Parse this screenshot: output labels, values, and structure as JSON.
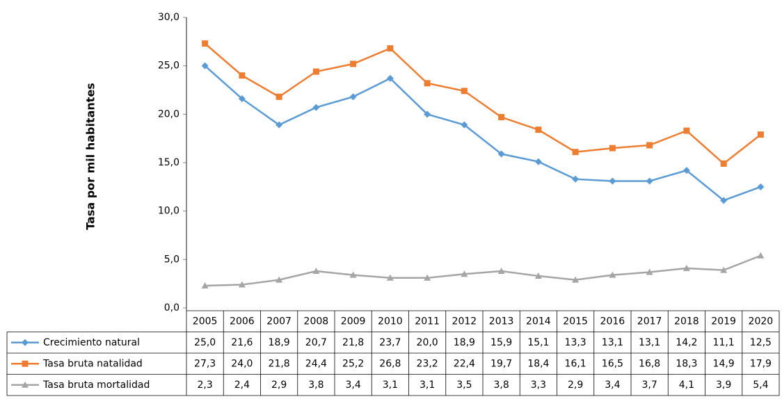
{
  "chart_data": {
    "type": "line",
    "y_label": "Tasa por mil habitantes",
    "categories": [
      "2005",
      "2006",
      "2007",
      "2008",
      "2009",
      "2010",
      "2011",
      "2012",
      "2013",
      "2014",
      "2015",
      "2016",
      "2017",
      "2018",
      "2019",
      "2020"
    ],
    "ylim": [
      0,
      30
    ],
    "yticks": [
      {
        "value": 0,
        "label": "0,0"
      },
      {
        "value": 5,
        "label": "5,0"
      },
      {
        "value": 10,
        "label": "10,0"
      },
      {
        "value": 15,
        "label": "15,0"
      },
      {
        "value": 20,
        "label": "20,0"
      },
      {
        "value": 25,
        "label": "25,0"
      },
      {
        "value": 30,
        "label": "30,0"
      }
    ],
    "series": [
      {
        "name": "Crecimiento natural",
        "color": "#5b9bd5",
        "marker": "diamond",
        "values": [
          25.0,
          21.6,
          18.9,
          20.7,
          21.8,
          23.7,
          20.0,
          18.9,
          15.9,
          15.1,
          13.3,
          13.1,
          13.1,
          14.2,
          11.1,
          12.5
        ],
        "value_labels": [
          "25,0",
          "21,6",
          "18,9",
          "20,7",
          "21,8",
          "23,7",
          "20,0",
          "18,9",
          "15,9",
          "15,1",
          "13,3",
          "13,1",
          "13,1",
          "14,2",
          "11,1",
          "12,5"
        ]
      },
      {
        "name": "Tasa bruta natalidad",
        "color": "#ed7d31",
        "marker": "square",
        "values": [
          27.3,
          24.0,
          21.8,
          24.4,
          25.2,
          26.8,
          23.2,
          22.4,
          19.7,
          18.4,
          16.1,
          16.5,
          16.8,
          18.3,
          14.9,
          17.9
        ],
        "value_labels": [
          "27,3",
          "24,0",
          "21,8",
          "24,4",
          "25,2",
          "26,8",
          "23,2",
          "22,4",
          "19,7",
          "18,4",
          "16,1",
          "16,5",
          "16,8",
          "18,3",
          "14,9",
          "17,9"
        ]
      },
      {
        "name": "Tasa bruta mortalidad",
        "color": "#a5a5a5",
        "marker": "triangle",
        "values": [
          2.3,
          2.4,
          2.9,
          3.8,
          3.4,
          3.1,
          3.1,
          3.5,
          3.8,
          3.3,
          2.9,
          3.4,
          3.7,
          4.1,
          3.9,
          5.4
        ],
        "value_labels": [
          "2,3",
          "2,4",
          "2,9",
          "3,8",
          "3,4",
          "3,1",
          "3,1",
          "3,5",
          "3,8",
          "3,3",
          "2,9",
          "3,4",
          "3,7",
          "4,1",
          "3,9",
          "5,4"
        ]
      }
    ]
  }
}
